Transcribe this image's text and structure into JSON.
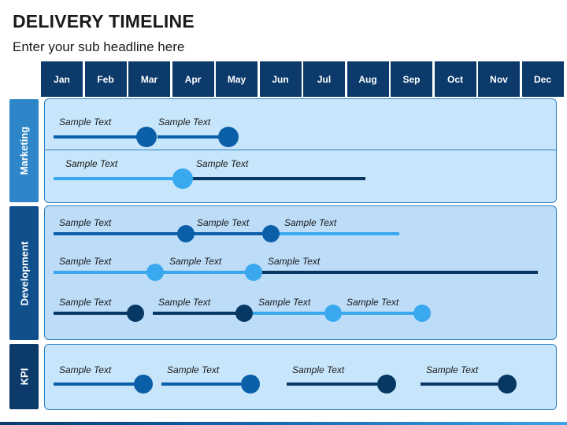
{
  "title": "DELIVERY TIMELINE",
  "subtitle": "Enter your sub headline here",
  "months": [
    "Jan",
    "Feb",
    "Mar",
    "Apr",
    "May",
    "Jun",
    "Jul",
    "Aug",
    "Sep",
    "Oct",
    "Nov",
    "Dec"
  ],
  "sections": [
    {
      "name": "Marketing",
      "color": "#2e86c9"
    },
    {
      "name": "Development",
      "color": "#0f4f8c"
    },
    {
      "name": "KPI",
      "color": "#0b3a6b"
    }
  ],
  "sample_label": "Sample Text",
  "colors": {
    "header": "#0b3a6b",
    "dark": "#073763",
    "mid": "#0b5ea8",
    "light": "#3aa8ef",
    "panel_light": "#c8e6fb",
    "panel_mid": "#bcdcf8"
  },
  "footer_text": ""
}
